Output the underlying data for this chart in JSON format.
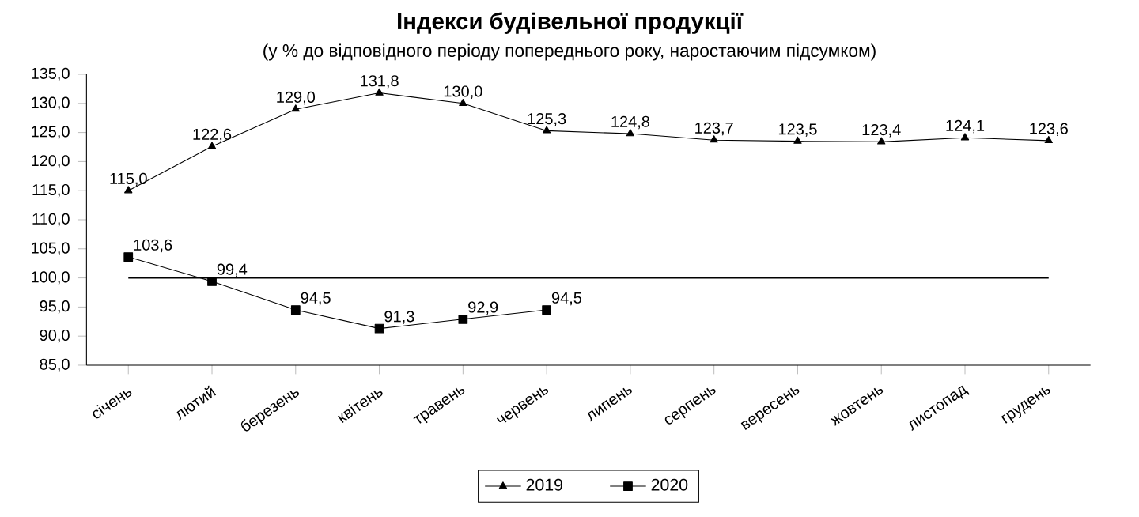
{
  "chart_data": {
    "type": "line",
    "title": "Індекси будівельної продукції",
    "subtitle": "(у % до відповідного періоду попереднього року, наростаючим підсумком)",
    "categories": [
      "січень",
      "лютий",
      "березень",
      "квітень",
      "травень",
      "червень",
      "липень",
      "серпень",
      "вересень",
      "жовтень",
      "листопад",
      "грудень"
    ],
    "series": [
      {
        "name": "2019",
        "color": "#000000",
        "marker": "triangle",
        "values": [
          115.0,
          122.6,
          129.0,
          131.8,
          130.0,
          125.3,
          124.8,
          123.7,
          123.5,
          123.4,
          124.1,
          123.6
        ],
        "value_labels": [
          "115,0",
          "122,6",
          "129,0",
          "131,8",
          "130,0",
          "125,3",
          "124,8",
          "123,7",
          "123,5",
          "123,4",
          "124,1",
          "123,6"
        ]
      },
      {
        "name": "2020",
        "color": "#000000",
        "marker": "square",
        "values": [
          103.6,
          99.4,
          94.5,
          91.3,
          92.9,
          94.5,
          null,
          null,
          null,
          null,
          null,
          null
        ],
        "value_labels": [
          "103,6",
          "99,4",
          "94,5",
          "91,3",
          "92,9",
          "94,5",
          null,
          null,
          null,
          null,
          null,
          null
        ]
      }
    ],
    "ylim": [
      85,
      135
    ],
    "yticks": [
      {
        "value": 85,
        "label": "85,0"
      },
      {
        "value": 90,
        "label": "90,0"
      },
      {
        "value": 95,
        "label": "95,0"
      },
      {
        "value": 100,
        "label": "100,0"
      },
      {
        "value": 105,
        "label": "105,0"
      },
      {
        "value": 110,
        "label": "110,0"
      },
      {
        "value": 115,
        "label": "115,0"
      },
      {
        "value": 120,
        "label": "120,0"
      },
      {
        "value": 125,
        "label": "125,0"
      },
      {
        "value": 130,
        "label": "130,0"
      },
      {
        "value": 135,
        "label": "135,0"
      }
    ],
    "ref_lines": [
      {
        "axis": "y",
        "value": 100,
        "color": "#000000"
      }
    ],
    "grid": false,
    "legend": "bottom",
    "line_style": "solid"
  }
}
